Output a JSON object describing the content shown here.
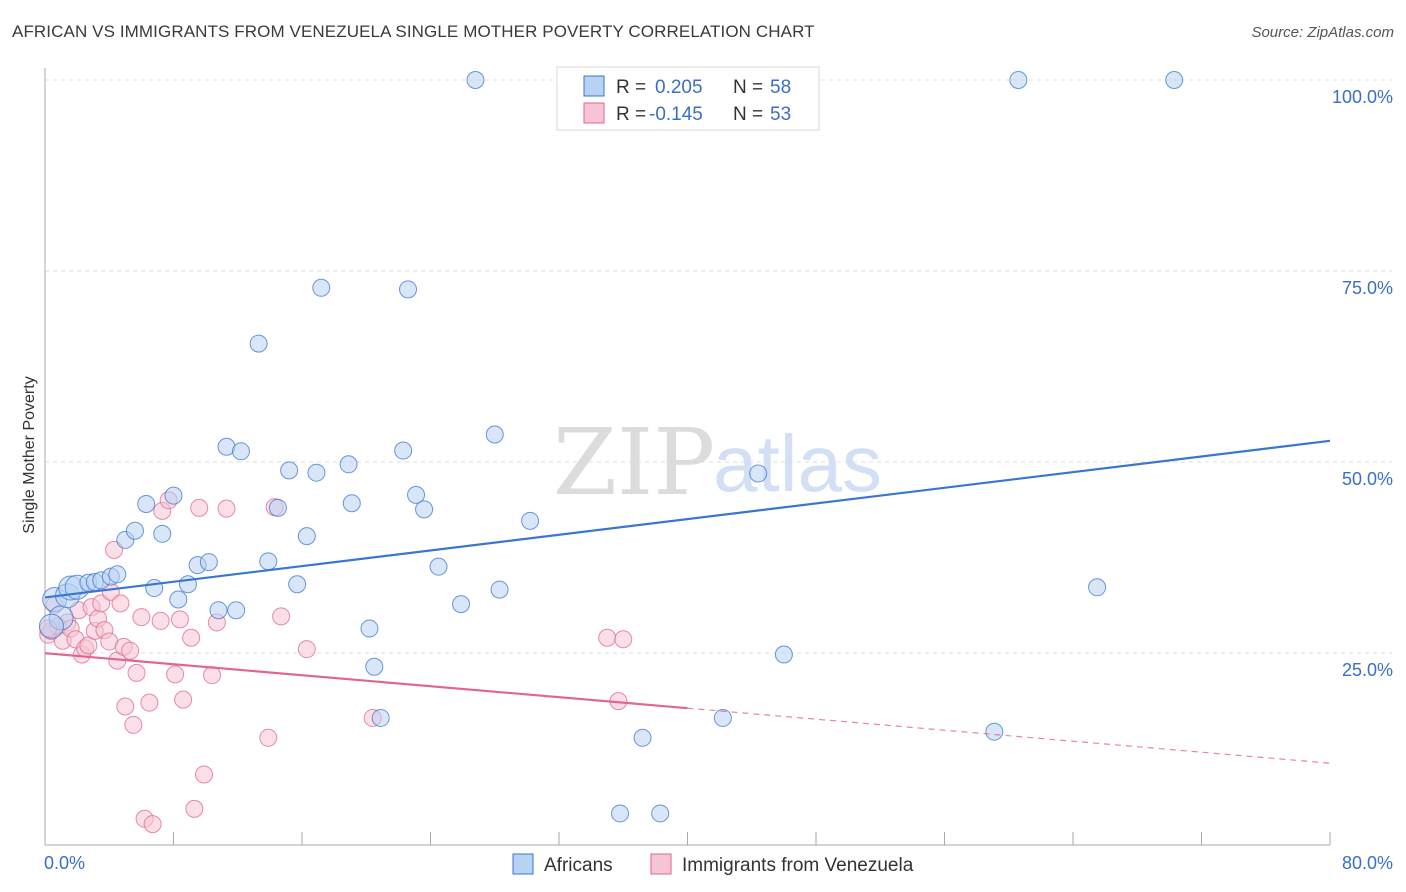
{
  "title": "AFRICAN VS IMMIGRANTS FROM VENEZUELA SINGLE MOTHER POVERTY CORRELATION CHART",
  "source": "Source: ZipAtlas.com",
  "colors": {
    "blue": "#3a76cf",
    "blue_fill": "#b8d2f3",
    "pink": "#e0668f",
    "pink_fill": "#f6c4d4",
    "tick": "#3a6fc4"
  },
  "watermark": {
    "zip": "ZIP",
    "atlas": "atlas"
  },
  "legend_box": {
    "r1_label": "R =",
    "r1_value": "0.205",
    "n1_label": "N =",
    "n1_value": "58",
    "r2_label": "R =",
    "r2_value": "-0.145",
    "n2_label": "N =",
    "n2_value": "53"
  },
  "chart_data": {
    "type": "scatter",
    "title": "AFRICAN VS IMMIGRANTS FROM VENEZUELA SINGLE MOTHER POVERTY CORRELATION CHART",
    "xlabel": "",
    "ylabel": "Single Mother Poverty",
    "xlim": [
      0,
      80
    ],
    "ylim": [
      0,
      100
    ],
    "x_tick_labels": [
      "0.0%",
      "80.0%"
    ],
    "y_tick_labels": [
      "25.0%",
      "50.0%",
      "75.0%",
      "100.0%"
    ],
    "y_ticks": [
      25,
      50,
      75,
      100
    ],
    "grid": true,
    "legend_position": "bottom-center",
    "series": [
      {
        "name": "Africans",
        "R": 0.205,
        "N": 58,
        "trend": {
          "x": [
            0,
            80
          ],
          "y": [
            34.5,
            55.0
          ],
          "dashed_from": null
        },
        "points": [
          [
            0.6,
            32.0
          ],
          [
            1.0,
            29.6
          ],
          [
            1.4,
            32.5
          ],
          [
            1.6,
            33.5
          ],
          [
            2.0,
            33.6
          ],
          [
            2.7,
            34.2
          ],
          [
            3.1,
            34.3
          ],
          [
            3.5,
            34.5
          ],
          [
            4.1,
            35.0
          ],
          [
            4.5,
            35.3
          ],
          [
            5.0,
            39.8
          ],
          [
            5.6,
            41.0
          ],
          [
            6.3,
            44.5
          ],
          [
            6.8,
            33.5
          ],
          [
            7.3,
            40.6
          ],
          [
            8.0,
            45.6
          ],
          [
            8.3,
            32.0
          ],
          [
            8.9,
            34.0
          ],
          [
            9.5,
            36.5
          ],
          [
            10.2,
            36.9
          ],
          [
            10.8,
            30.6
          ],
          [
            11.3,
            52.0
          ],
          [
            11.9,
            30.6
          ],
          [
            12.2,
            51.4
          ],
          [
            13.3,
            65.5
          ],
          [
            13.9,
            37.0
          ],
          [
            14.5,
            44.0
          ],
          [
            15.2,
            48.9
          ],
          [
            15.7,
            34.0
          ],
          [
            16.3,
            40.3
          ],
          [
            16.9,
            48.6
          ],
          [
            17.2,
            72.8
          ],
          [
            18.9,
            49.7
          ],
          [
            19.1,
            44.6
          ],
          [
            20.2,
            28.2
          ],
          [
            20.5,
            23.2
          ],
          [
            20.9,
            16.5
          ],
          [
            22.3,
            51.5
          ],
          [
            22.6,
            72.6
          ],
          [
            23.1,
            45.7
          ],
          [
            23.6,
            43.8
          ],
          [
            24.5,
            36.3
          ],
          [
            25.9,
            31.4
          ],
          [
            28.0,
            53.6
          ],
          [
            28.3,
            33.3
          ],
          [
            26.8,
            100.0
          ],
          [
            30.2,
            42.3
          ],
          [
            35.8,
            4.0
          ],
          [
            37.2,
            13.9
          ],
          [
            38.3,
            4.0
          ],
          [
            42.2,
            16.5
          ],
          [
            44.4,
            48.5
          ],
          [
            46.0,
            24.8
          ],
          [
            59.1,
            14.7
          ],
          [
            60.6,
            100.0
          ],
          [
            65.5,
            33.6
          ],
          [
            70.3,
            100.0
          ],
          [
            0.4,
            28.5
          ]
        ]
      },
      {
        "name": "Immigrants from Venezuela",
        "R": -0.145,
        "N": 53,
        "trend": {
          "x": [
            0,
            80
          ],
          "y": [
            27.2,
            12.8
          ],
          "dashed_from": 40.0
        },
        "points": [
          [
            0.2,
            27.4
          ],
          [
            0.4,
            27.9
          ],
          [
            0.6,
            31.3
          ],
          [
            0.8,
            28.5
          ],
          [
            1.1,
            26.6
          ],
          [
            1.4,
            29.0
          ],
          [
            1.6,
            28.2
          ],
          [
            1.9,
            26.8
          ],
          [
            2.1,
            30.6
          ],
          [
            2.3,
            24.8
          ],
          [
            2.5,
            25.6
          ],
          [
            2.7,
            26.0
          ],
          [
            2.9,
            31.0
          ],
          [
            3.1,
            27.9
          ],
          [
            3.3,
            29.5
          ],
          [
            3.5,
            31.5
          ],
          [
            3.7,
            28.0
          ],
          [
            4.0,
            26.5
          ],
          [
            4.1,
            33.0
          ],
          [
            4.3,
            38.5
          ],
          [
            4.5,
            24.0
          ],
          [
            4.7,
            31.5
          ],
          [
            4.9,
            25.8
          ],
          [
            5.0,
            18.0
          ],
          [
            5.3,
            25.3
          ],
          [
            5.5,
            15.6
          ],
          [
            5.7,
            22.4
          ],
          [
            6.0,
            29.7
          ],
          [
            6.2,
            3.3
          ],
          [
            6.5,
            18.5
          ],
          [
            6.7,
            2.6
          ],
          [
            7.2,
            29.2
          ],
          [
            7.3,
            43.6
          ],
          [
            7.7,
            45.0
          ],
          [
            8.1,
            22.2
          ],
          [
            8.4,
            29.4
          ],
          [
            8.6,
            18.9
          ],
          [
            9.1,
            27.0
          ],
          [
            9.6,
            44.0
          ],
          [
            9.9,
            9.1
          ],
          [
            10.4,
            22.1
          ],
          [
            10.7,
            29.0
          ],
          [
            11.3,
            43.9
          ],
          [
            13.9,
            13.9
          ],
          [
            14.3,
            44.1
          ],
          [
            14.7,
            29.8
          ],
          [
            16.3,
            25.5
          ],
          [
            20.4,
            16.5
          ],
          [
            9.3,
            4.6
          ],
          [
            35.0,
            27.0
          ],
          [
            35.7,
            18.7
          ],
          [
            36.0,
            26.8
          ],
          [
            0.2,
            28.2
          ]
        ]
      }
    ]
  },
  "bottom_legend": {
    "s1": "Africans",
    "s2": "Immigrants from Venezuela"
  }
}
